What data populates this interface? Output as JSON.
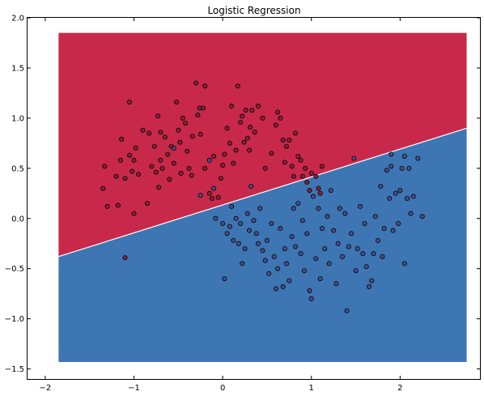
{
  "chart_data": {
    "type": "scatter",
    "title": "Logistic Regression",
    "xlabel": "",
    "ylabel": "",
    "xlim": [
      -2.2,
      2.9
    ],
    "ylim": [
      -1.6,
      2.0
    ],
    "x_ticks": [
      -2,
      -1,
      0,
      1,
      2
    ],
    "x_tick_labels": [
      "−2",
      "−1",
      "0",
      "1",
      "2"
    ],
    "y_ticks": [
      -1.5,
      -1.0,
      -0.5,
      0.0,
      0.5,
      1.0,
      1.5,
      2.0
    ],
    "y_tick_labels": [
      "−1.5",
      "−1.0",
      "−0.5",
      "0.0",
      "0.5",
      "1.0",
      "1.5",
      "2.0"
    ],
    "grid": false,
    "decision_region": {
      "x_range": [
        -1.85,
        2.75
      ],
      "y_range": [
        -1.43,
        1.85
      ],
      "boundary_line": [
        [
          -1.85,
          -0.38
        ],
        [
          2.75,
          0.9
        ]
      ],
      "upper_color": "#c8294a",
      "lower_color": "#3d76b3"
    },
    "series": [
      {
        "color": "#8a2338",
        "points": [
          [
            -1.33,
            0.52
          ],
          [
            -1.35,
            0.3
          ],
          [
            -1.3,
            0.12
          ],
          [
            -1.2,
            0.42
          ],
          [
            -1.18,
            0.13
          ],
          [
            -1.15,
            0.58
          ],
          [
            -1.14,
            0.79
          ],
          [
            -1.1,
            0.4
          ],
          [
            -1.1,
            -0.39
          ],
          [
            -1.05,
            0.63
          ],
          [
            -1.05,
            1.16
          ],
          [
            -1.02,
            0.47
          ],
          [
            -1.0,
            0.58
          ],
          [
            -1.0,
            0.05
          ],
          [
            -0.98,
            0.7
          ],
          [
            -0.95,
            0.44
          ],
          [
            -0.9,
            0.88
          ],
          [
            -0.85,
            0.15
          ],
          [
            -0.83,
            0.85
          ],
          [
            -0.8,
            0.52
          ],
          [
            -0.77,
            0.72
          ],
          [
            -0.75,
            0.46
          ],
          [
            -0.73,
            1.02
          ],
          [
            -0.72,
            0.31
          ],
          [
            -0.7,
            0.58
          ],
          [
            -0.7,
            0.86
          ],
          [
            -0.68,
            0.5
          ],
          [
            -0.65,
            0.81
          ],
          [
            -0.62,
            0.64
          ],
          [
            -0.6,
            0.39
          ],
          [
            -0.58,
            0.72
          ],
          [
            -0.55,
            0.55
          ],
          [
            -0.52,
            1.16
          ],
          [
            -0.5,
            0.88
          ],
          [
            -0.48,
            0.76
          ],
          [
            -0.47,
            0.45
          ],
          [
            -0.45,
            1.0
          ],
          [
            -0.42,
            0.95
          ],
          [
            -0.4,
            0.67
          ],
          [
            -0.38,
            0.5
          ],
          [
            -0.35,
            0.43
          ],
          [
            -0.34,
            0.82
          ],
          [
            -0.3,
            1.35
          ],
          [
            -0.28,
            1.03
          ],
          [
            -0.26,
            1.1
          ],
          [
            -0.25,
            0.84
          ],
          [
            -0.22,
            1.1
          ],
          [
            -0.2,
            0.5
          ],
          [
            -0.2,
            1.32
          ],
          [
            -0.15,
            0.25
          ],
          [
            -0.12,
            0.2
          ],
          [
            -0.1,
            0.62
          ],
          [
            -0.05,
            0.21
          ],
          [
            -0.02,
            0.4
          ],
          [
            0.0,
            0.53
          ],
          [
            0.02,
            0.64
          ],
          [
            0.05,
            0.9
          ],
          [
            0.08,
            0.75
          ],
          [
            0.1,
            1.12
          ],
          [
            0.12,
            0.55
          ],
          [
            0.15,
            0.68
          ],
          [
            0.17,
            1.32
          ],
          [
            0.2,
            0.96
          ],
          [
            0.22,
            1.02
          ],
          [
            0.24,
            0.76
          ],
          [
            0.26,
            1.08
          ],
          [
            0.28,
            0.8
          ],
          [
            0.3,
            0.68
          ],
          [
            0.31,
            0.91
          ],
          [
            0.33,
            1.08
          ],
          [
            0.36,
            0.86
          ],
          [
            0.4,
            1.12
          ],
          [
            0.45,
            1.0
          ],
          [
            0.48,
            0.5
          ],
          [
            0.55,
            0.65
          ],
          [
            0.6,
            0.93
          ],
          [
            0.62,
            1.06
          ],
          [
            0.65,
            1.0
          ],
          [
            0.68,
            0.78
          ],
          [
            0.7,
            0.56
          ],
          [
            0.72,
            0.72
          ],
          [
            0.75,
            0.78
          ],
          [
            0.78,
            0.52
          ],
          [
            0.8,
            0.42
          ],
          [
            0.82,
            0.85
          ],
          [
            0.85,
            0.62
          ],
          [
            0.88,
            0.58
          ],
          [
            0.9,
            0.42
          ],
          [
            0.93,
            0.5
          ],
          [
            0.95,
            0.36
          ],
          [
            0.98,
            0.28
          ],
          [
            1.0,
            0.45
          ],
          [
            1.05,
            0.42
          ],
          [
            1.08,
            0.3
          ],
          [
            1.1,
            0.25
          ],
          [
            1.12,
            0.52
          ]
        ]
      },
      {
        "color": "#4b4f8c",
        "points": [
          [
            -0.55,
            0.7
          ],
          [
            -0.25,
            0.23
          ],
          [
            -0.15,
            0.58
          ],
          [
            -0.1,
            0.3
          ],
          [
            -0.08,
            0.0
          ],
          [
            0.0,
            -0.05
          ],
          [
            0.02,
            -0.6
          ],
          [
            0.05,
            -0.15
          ],
          [
            0.08,
            -0.08
          ],
          [
            0.1,
            0.12
          ],
          [
            0.12,
            -0.22
          ],
          [
            0.15,
            0.0
          ],
          [
            0.18,
            -0.25
          ],
          [
            0.2,
            -0.05
          ],
          [
            0.22,
            -0.45
          ],
          [
            0.25,
            -0.3
          ],
          [
            0.28,
            0.05
          ],
          [
            0.3,
            -0.12
          ],
          [
            0.32,
            0.32
          ],
          [
            0.35,
            -0.02
          ],
          [
            0.38,
            -0.15
          ],
          [
            0.4,
            -0.25
          ],
          [
            0.42,
            0.1
          ],
          [
            0.45,
            -0.32
          ],
          [
            0.48,
            -0.42
          ],
          [
            0.5,
            -0.22
          ],
          [
            0.52,
            -0.55
          ],
          [
            0.55,
            -0.05
          ],
          [
            0.58,
            -0.38
          ],
          [
            0.6,
            -0.7
          ],
          [
            0.62,
            -0.5
          ],
          [
            0.65,
            -0.1
          ],
          [
            0.68,
            -0.68
          ],
          [
            0.7,
            -0.3
          ],
          [
            0.72,
            -0.45
          ],
          [
            0.75,
            -0.62
          ],
          [
            0.78,
            -0.18
          ],
          [
            0.8,
            0.1
          ],
          [
            0.82,
            -0.28
          ],
          [
            0.85,
            0.15
          ],
          [
            0.88,
            -0.35
          ],
          [
            0.9,
            -0.02
          ],
          [
            0.92,
            -0.52
          ],
          [
            0.95,
            -0.15
          ],
          [
            0.98,
            -0.72
          ],
          [
            1.0,
            -0.8
          ],
          [
            1.02,
            0.22
          ],
          [
            1.05,
            -0.4
          ],
          [
            1.08,
            0.1
          ],
          [
            1.1,
            -0.6
          ],
          [
            1.12,
            -0.1
          ],
          [
            1.15,
            -0.3
          ],
          [
            1.18,
            0.02
          ],
          [
            1.2,
            -0.45
          ],
          [
            1.22,
            0.28
          ],
          [
            1.25,
            -0.12
          ],
          [
            1.28,
            -0.65
          ],
          [
            1.3,
            -0.25
          ],
          [
            1.32,
            0.1
          ],
          [
            1.35,
            -0.38
          ],
          [
            1.38,
            0.05
          ],
          [
            1.4,
            -0.92
          ],
          [
            1.42,
            -0.28
          ],
          [
            1.45,
            -0.15
          ],
          [
            1.48,
            0.6
          ],
          [
            1.5,
            -0.52
          ],
          [
            1.52,
            -0.3
          ],
          [
            1.55,
            0.12
          ],
          [
            1.58,
            -0.35
          ],
          [
            1.6,
            -0.05
          ],
          [
            1.62,
            -0.48
          ],
          [
            1.65,
            -0.68
          ],
          [
            1.68,
            -0.62
          ],
          [
            1.7,
            -0.35
          ],
          [
            1.72,
            0.02
          ],
          [
            1.75,
            -0.22
          ],
          [
            1.78,
            0.32
          ],
          [
            1.8,
            -0.38
          ],
          [
            1.82,
            -0.1
          ],
          [
            1.85,
            0.48
          ],
          [
            1.88,
            0.2
          ],
          [
            1.9,
            0.52
          ],
          [
            1.92,
            -0.12
          ],
          [
            1.95,
            0.25
          ],
          [
            1.98,
            -0.05
          ],
          [
            2.0,
            0.28
          ],
          [
            2.02,
            0.5
          ],
          [
            2.05,
            0.62
          ],
          [
            2.05,
            -0.45
          ],
          [
            2.08,
            0.2
          ],
          [
            2.1,
            0.5
          ],
          [
            2.12,
            0.05
          ],
          [
            2.15,
            0.22
          ],
          [
            2.2,
            0.6
          ],
          [
            2.25,
            0.02
          ],
          [
            1.9,
            0.64
          ]
        ]
      }
    ]
  }
}
